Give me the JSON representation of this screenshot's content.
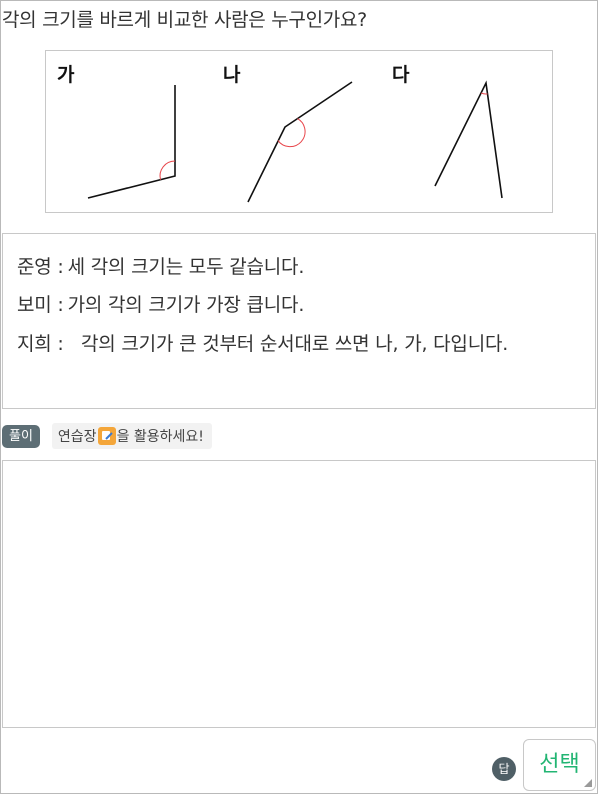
{
  "question": "각의 크기를 바르게 비교한 사람은 누구인가요?",
  "figure": {
    "labels": [
      "가",
      "나",
      "다"
    ]
  },
  "statements": [
    {
      "speaker": "준영 :",
      "text": "세 각의 크기는 모두 같습니다."
    },
    {
      "speaker": "보미 :",
      "text": "가의 각의 크기가 가장 큽니다."
    },
    {
      "speaker": "지희 :",
      "text": "각의 크기가 큰 것부터 순서대로 쓰면 나, 가, 다입니다."
    }
  ],
  "solution": {
    "badge": "풀이",
    "hint_before": "연습장",
    "hint_icon": "pencil-icon",
    "hint_after": "을 활용하세요!"
  },
  "answer": {
    "badge": "답",
    "select_label": "선택"
  },
  "colors": {
    "badge_bg": "#5d6e75",
    "select_text": "#22b573",
    "angle_arc": "#e8454a",
    "hint_icon": "#f4a63a"
  }
}
